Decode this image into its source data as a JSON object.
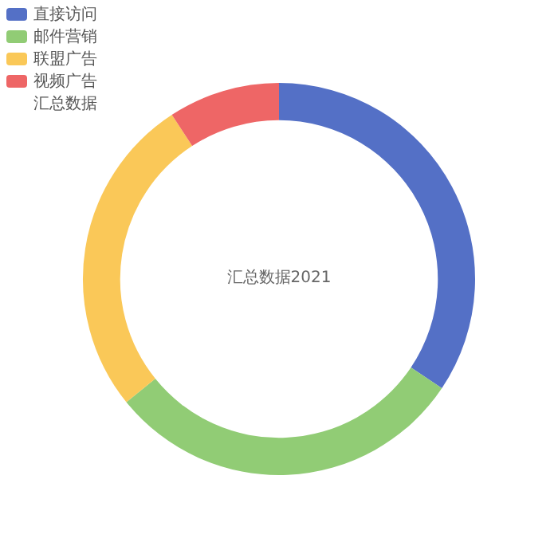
{
  "chart_data": {
    "type": "donut",
    "title": "汇总数据2021",
    "categories": [
      "直接访问",
      "邮件营销",
      "联盟广告",
      "视频广告"
    ],
    "values": [
      34.4,
      29.8,
      26.6,
      9.2
    ],
    "colors": [
      "#5470c6",
      "#91cc75",
      "#fac858",
      "#ee6666"
    ],
    "legend": "top left",
    "annotations": [
      "汇总数据"
    ]
  }
}
